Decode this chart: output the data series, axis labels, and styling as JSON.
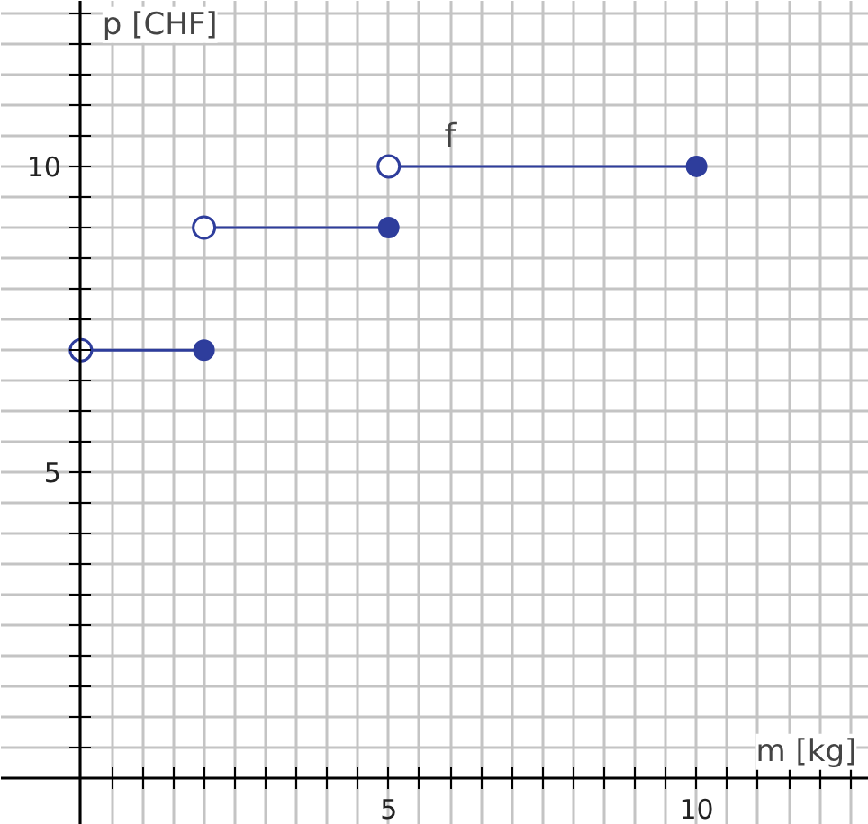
{
  "chart_data": {
    "type": "line",
    "xlabel": "m [kg]",
    "ylabel": "p [CHF]",
    "xlim": [
      -1.3,
      12.8
    ],
    "ylim": [
      -0.75,
      12.7
    ],
    "xticks": [
      {
        "value": 0,
        "label": null
      },
      {
        "value": 0.5,
        "label": null
      },
      {
        "value": 1,
        "label": null
      },
      {
        "value": 1.5,
        "label": null
      },
      {
        "value": 2,
        "label": null
      },
      {
        "value": 2.5,
        "label": null
      },
      {
        "value": 3,
        "label": null
      },
      {
        "value": 3.5,
        "label": null
      },
      {
        "value": 4,
        "label": null
      },
      {
        "value": 4.5,
        "label": null
      },
      5,
      {
        "value": 5.5,
        "label": null
      },
      {
        "value": 6,
        "label": null
      },
      {
        "value": 6.5,
        "label": null
      },
      {
        "value": 7,
        "label": null
      },
      {
        "value": 7.5,
        "label": null
      },
      {
        "value": 8,
        "label": null
      },
      {
        "value": 8.5,
        "label": null
      },
      {
        "value": 9,
        "label": null
      },
      {
        "value": 9.5,
        "label": null
      },
      10,
      {
        "value": 10.5,
        "label": null
      },
      {
        "value": 11,
        "label": null
      },
      {
        "value": 11.5,
        "label": null
      },
      {
        "value": 12,
        "label": null
      },
      {
        "value": 12.5,
        "label": null
      }
    ],
    "yticks": [
      {
        "value": 0.5,
        "label": null
      },
      {
        "value": 1,
        "label": null
      },
      {
        "value": 1.5,
        "label": null
      },
      {
        "value": 2,
        "label": null
      },
      {
        "value": 2.5,
        "label": null
      },
      {
        "value": 3,
        "label": null
      },
      {
        "value": 3.5,
        "label": null
      },
      {
        "value": 4,
        "label": null
      },
      {
        "value": 4.5,
        "label": null
      },
      5,
      {
        "value": 5.5,
        "label": null
      },
      {
        "value": 6,
        "label": null
      },
      {
        "value": 6.5,
        "label": null
      },
      {
        "value": 7,
        "label": null
      },
      {
        "value": 7.5,
        "label": null
      },
      {
        "value": 8,
        "label": null
      },
      {
        "value": 8.5,
        "label": null
      },
      {
        "value": 9,
        "label": null
      },
      {
        "value": 9.5,
        "label": null
      },
      10,
      {
        "value": 10.5,
        "label": null
      },
      {
        "value": 11,
        "label": null
      },
      {
        "value": 11.5,
        "label": null
      },
      {
        "value": 12,
        "label": null
      },
      {
        "value": 12.5,
        "label": null
      }
    ],
    "grid": true,
    "marker": "circle",
    "annotations": [
      "f"
    ],
    "series": [
      {
        "color": "#2e3d9c",
        "x": [
          0,
          2
        ],
        "values": [
          7,
          7
        ]
      },
      {
        "color": "#2e3d9c",
        "x": [
          2,
          5
        ],
        "values": [
          9,
          9
        ]
      },
      {
        "color": "#2e3d9c",
        "x": [
          5,
          10
        ],
        "values": [
          10,
          10
        ]
      }
    ]
  }
}
